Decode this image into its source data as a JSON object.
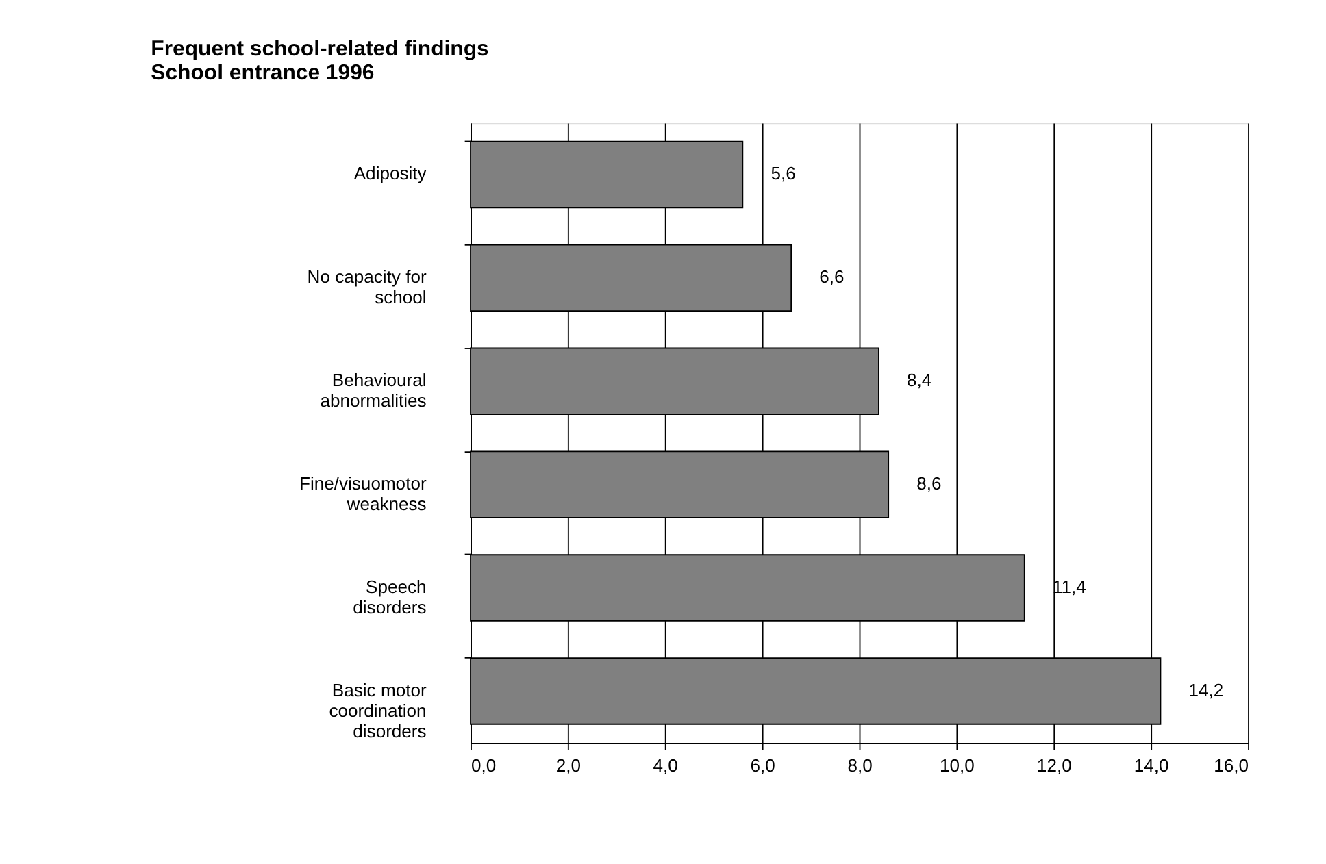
{
  "chart_data": {
    "type": "bar",
    "orientation": "horizontal",
    "title": "Frequent school-related findings",
    "subtitle": "School entrance 1996",
    "categories": [
      "Adiposity",
      "No capacity for\nschool",
      "Behavioural\nabnormalities",
      "Fine/visuomotor\nweakness",
      "Speech\ndisorders",
      "Basic motor\ncoordination\ndisorders"
    ],
    "values": [
      5.6,
      6.6,
      8.4,
      8.6,
      11.4,
      14.2
    ],
    "value_labels": [
      "5,6",
      "6,6",
      "8,4",
      "8,6",
      "11,4",
      "14,2"
    ],
    "color": "#808080",
    "xlim": [
      0,
      16
    ],
    "xticks": [
      {
        "value": 0,
        "label": "0,0"
      },
      {
        "value": 2,
        "label": "2,0"
      },
      {
        "value": 4,
        "label": "4,0"
      },
      {
        "value": 6,
        "label": "6,0"
      },
      {
        "value": 8,
        "label": "8,0"
      },
      {
        "value": 10,
        "label": "10,0"
      },
      {
        "value": 12,
        "label": "12,0"
      },
      {
        "value": 14,
        "label": "14,0"
      },
      {
        "value": 16,
        "label": "16,0"
      }
    ],
    "grid": "x"
  }
}
